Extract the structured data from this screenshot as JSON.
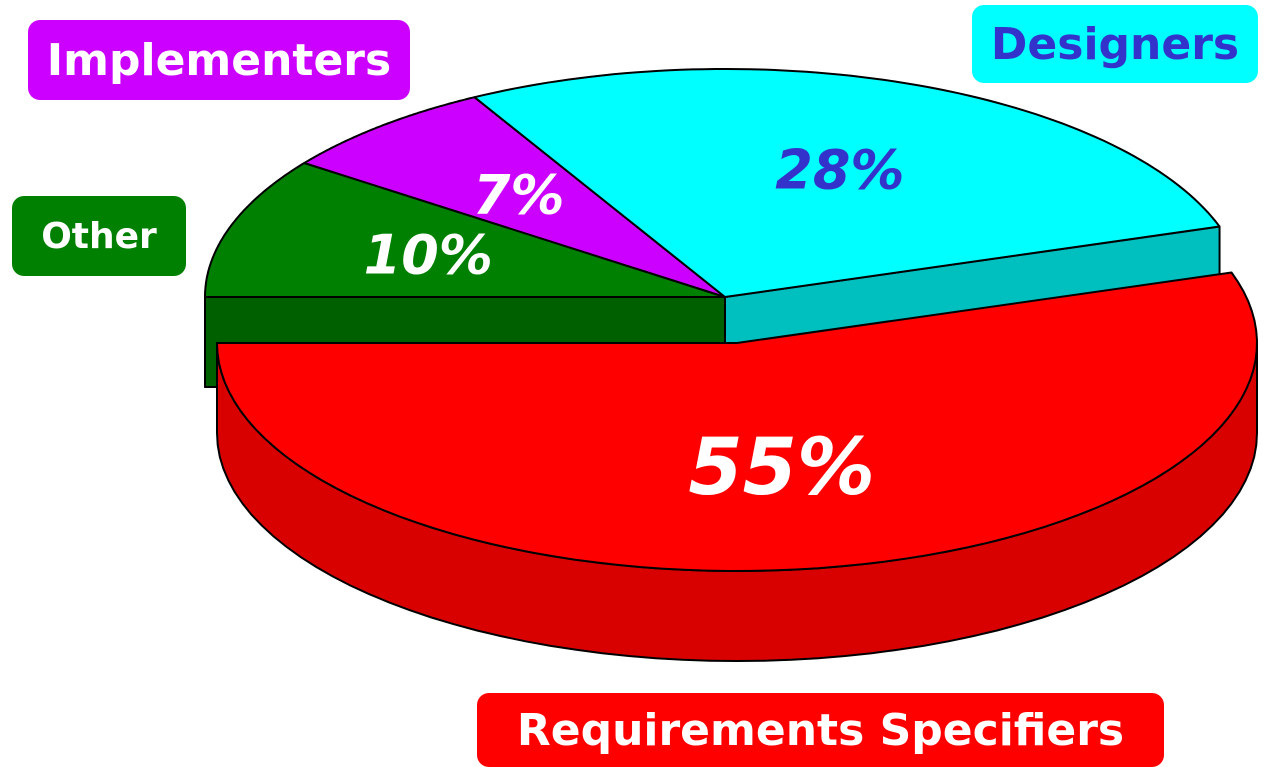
{
  "chart_data": {
    "type": "pie",
    "title": "",
    "slices": [
      {
        "label": "Requirements Specifiers",
        "value": 55,
        "value_label": "55%",
        "color": "#ff0000",
        "label_text_color": "#ffffff",
        "pct_text_color": "#ffffff",
        "exploded": true
      },
      {
        "label": "Designers",
        "value": 28,
        "value_label": "28%",
        "color": "#00ffff",
        "label_text_color": "#3333cc",
        "pct_text_color": "#3333cc",
        "exploded": false
      },
      {
        "label": "Implementers",
        "value": 7,
        "value_label": "7%",
        "color": "#cc00ff",
        "label_text_color": "#ffffff",
        "pct_text_color": "#ffffff",
        "exploded": false
      },
      {
        "label": "Other",
        "value": 10,
        "value_label": "10%",
        "color": "#008000",
        "label_text_color": "#ffffff",
        "pct_text_color": "#ffffff",
        "exploded": false
      }
    ],
    "style": "3d-exploded-pie"
  }
}
